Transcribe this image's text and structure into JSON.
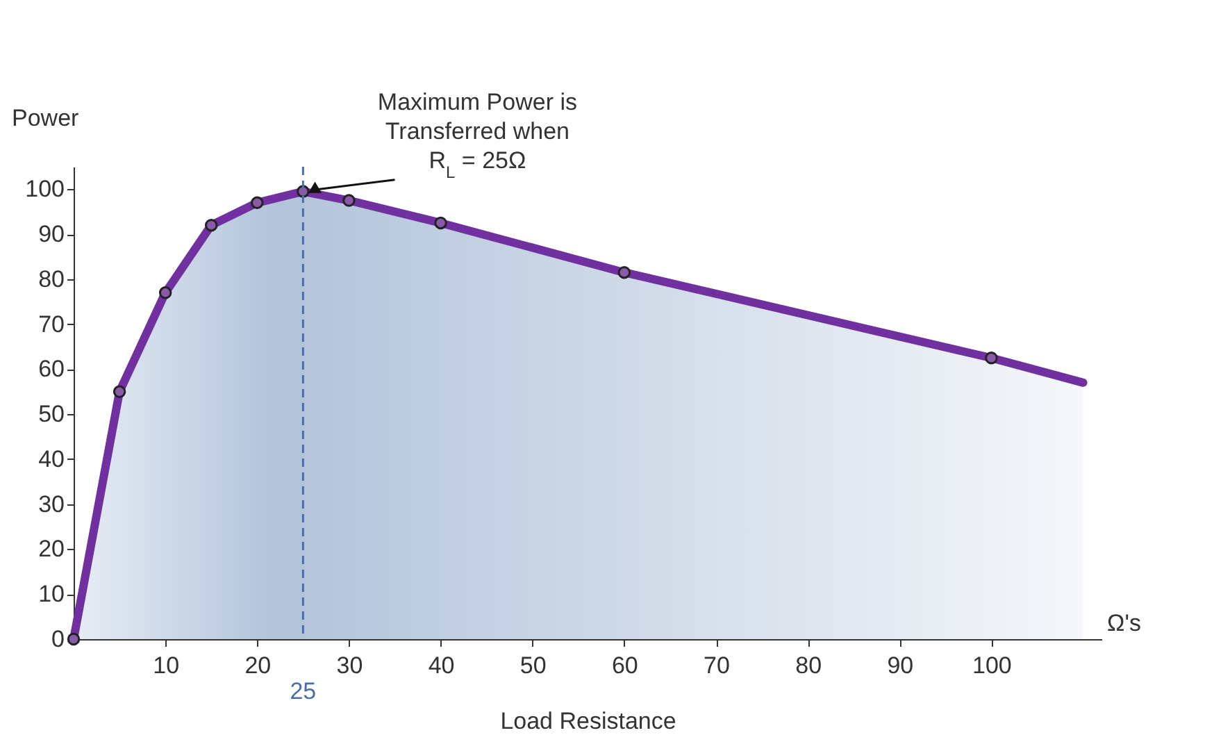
{
  "chart_data": {
    "type": "area",
    "xlabel": "Load Resistance",
    "ylabel": "Power",
    "x": [
      0,
      5,
      10,
      15,
      20,
      25,
      30,
      40,
      60,
      100,
      110
    ],
    "series": [
      {
        "color": "#7030a0",
        "values": [
          0,
          55,
          77,
          92,
          97,
          99.5,
          97.5,
          92.5,
          81.5,
          62.5,
          57
        ]
      }
    ],
    "xlim": [
      0,
      112
    ],
    "xticks": [
      10,
      20,
      30,
      40,
      50,
      60,
      70,
      80,
      90,
      100
    ],
    "ylim": [
      0,
      105
    ],
    "yticks": [
      0,
      10,
      20,
      30,
      40,
      50,
      60,
      70,
      80,
      90,
      100
    ],
    "marker": "circle",
    "grid": false,
    "ref_lines": [
      {
        "axis": "x",
        "value": 25,
        "label": "25",
        "color": "#4a6fa5",
        "line_style": "dashed"
      }
    ],
    "annotations": [
      {
        "text": "Maximum Power is Transferred when R$_{L}$ = 25Ω",
        "x": 25,
        "y": 99.5
      },
      "Ω's"
    ]
  }
}
